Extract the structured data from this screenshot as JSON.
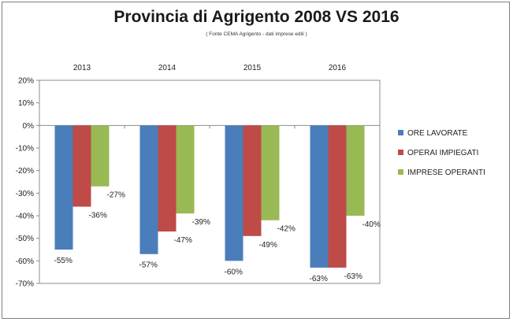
{
  "chart_data": {
    "type": "bar",
    "title": "Provincia di Agrigento 2008 VS 2016",
    "subtitle": "( Fonte CEMA Agrigento - dati imprese edili )",
    "categories": [
      "2013",
      "2014",
      "2015",
      "2016"
    ],
    "series": [
      {
        "name": "ORE LAVORATE",
        "color": "#4a7ebb",
        "values": [
          -55,
          -57,
          -60,
          -63
        ],
        "labels": [
          "-55%",
          "-57%",
          "-60%",
          "-63%"
        ]
      },
      {
        "name": "OPERAI IMPIEGATI",
        "color": "#be4b48",
        "values": [
          -36,
          -47,
          -49,
          -63
        ],
        "labels": [
          "-36%",
          "-47%",
          "-49%",
          "-63%"
        ]
      },
      {
        "name": "IMPRESE OPERANTI",
        "color": "#98b954",
        "values": [
          -27,
          -39,
          -42,
          -40
        ],
        "labels": [
          "-27%",
          "-39%",
          "-42%",
          "-40%"
        ]
      }
    ],
    "ylim": [
      -70,
      20
    ],
    "yticks": [
      "20%",
      "10%",
      "0%",
      "-10%",
      "-20%",
      "-30%",
      "-40%",
      "-50%",
      "-60%",
      "-70%"
    ],
    "ytick_values": [
      20,
      10,
      0,
      -10,
      -20,
      -30,
      -40,
      -50,
      -60,
      -70
    ],
    "xaxis_position": "top",
    "grid": false,
    "legend": "right"
  }
}
